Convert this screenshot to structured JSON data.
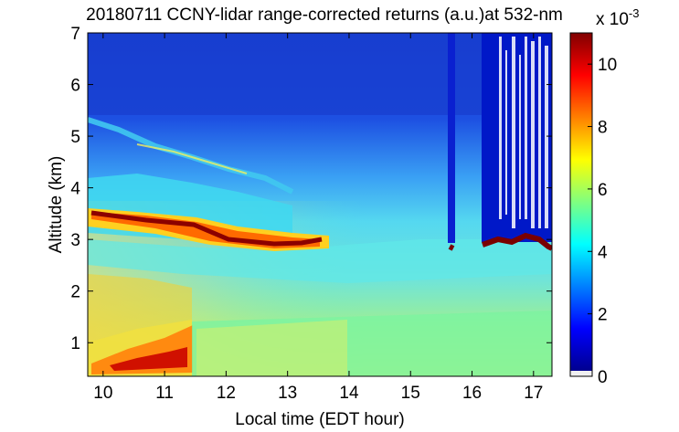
{
  "chart_data": {
    "type": "heatmap",
    "title": "20180711 CCNY-lidar range-corrected returns (a.u.)at 532-nm",
    "xlabel": "Local time (EDT hour)",
    "ylabel": "Altitude (km)",
    "xlim": [
      9.75,
      17.3
    ],
    "ylim": [
      0.35,
      7.0
    ],
    "xticks": [
      "10",
      "11",
      "12",
      "13",
      "14",
      "15",
      "16",
      "17"
    ],
    "yticks": [
      "1",
      "2",
      "3",
      "4",
      "5",
      "6",
      "7"
    ],
    "colorbar": {
      "label": "x 10",
      "exponent": "-3",
      "ticks": [
        "0",
        "2",
        "4",
        "6",
        "8",
        "10"
      ],
      "range": [
        0,
        11
      ],
      "colormap": "jet"
    },
    "features": [
      {
        "name": "aerosol-layer-top",
        "x": [
          9.75,
          10.5,
          11.5,
          12.5,
          13.0,
          13.5,
          13.75
        ],
        "y": [
          3.5,
          3.45,
          3.2,
          3.0,
          2.95,
          3.05,
          3.0
        ],
        "value": 10.5
      },
      {
        "name": "upper-thin-layer",
        "x": [
          9.75,
          10.5,
          11.2,
          12.0,
          12.8,
          13.3
        ],
        "y": [
          5.3,
          5.0,
          4.8,
          4.5,
          4.2,
          3.6
        ],
        "value": 5
      },
      {
        "name": "surface-layer-max",
        "x": [
          9.8,
          10.5,
          11.0,
          11.45
        ],
        "y": [
          0.5,
          0.8,
          1.0,
          1.4
        ],
        "value": 10
      },
      {
        "name": "cloud-base",
        "x": [
          15.65,
          16.2,
          16.6,
          17.0,
          17.25
        ],
        "y": [
          2.85,
          2.9,
          3.0,
          3.05,
          2.85
        ],
        "value": 11
      }
    ]
  }
}
